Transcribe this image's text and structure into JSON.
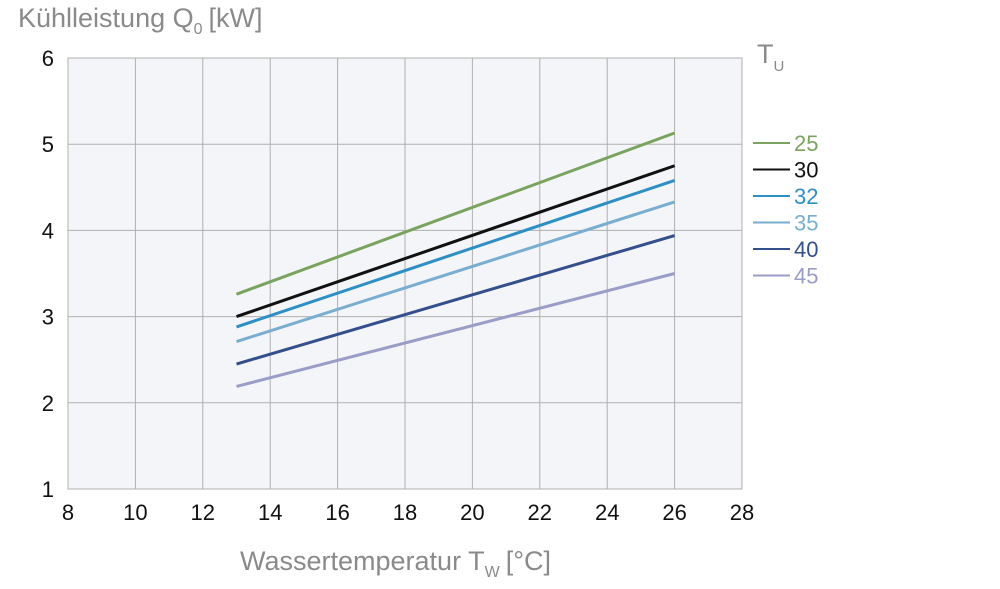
{
  "chart_data": {
    "type": "line",
    "ylabel": "Kühlleistung Q",
    "ylabel_sub": "0",
    "ylabel_unit": "[kW]",
    "xlabel": "Wassertemperatur T",
    "xlabel_sub": "W",
    "xlabel_unit": "[°C]",
    "legend_title": "T",
    "legend_title_sub": "U",
    "legend_position": "right",
    "xlim": [
      8,
      28
    ],
    "ylim": [
      1,
      6
    ],
    "x_ticks": [
      8,
      10,
      12,
      14,
      16,
      18,
      20,
      22,
      24,
      26,
      28
    ],
    "y_ticks": [
      1,
      2,
      3,
      4,
      5,
      6
    ],
    "grid": true,
    "series": [
      {
        "name": "25",
        "color": "#7aa35f",
        "x": [
          13,
          26
        ],
        "y": [
          3.26,
          5.13
        ]
      },
      {
        "name": "30",
        "color": "#111111",
        "x": [
          13,
          26
        ],
        "y": [
          3.0,
          4.75
        ]
      },
      {
        "name": "32",
        "color": "#2e8fc4",
        "x": [
          13,
          26
        ],
        "y": [
          2.88,
          4.58
        ]
      },
      {
        "name": "35",
        "color": "#7aaed0",
        "x": [
          13,
          26
        ],
        "y": [
          2.71,
          4.33
        ]
      },
      {
        "name": "40",
        "color": "#354f8c",
        "x": [
          13,
          26
        ],
        "y": [
          2.45,
          3.94
        ]
      },
      {
        "name": "45",
        "color": "#9a9dc6",
        "x": [
          13,
          26
        ],
        "y": [
          2.19,
          3.5
        ]
      }
    ]
  }
}
